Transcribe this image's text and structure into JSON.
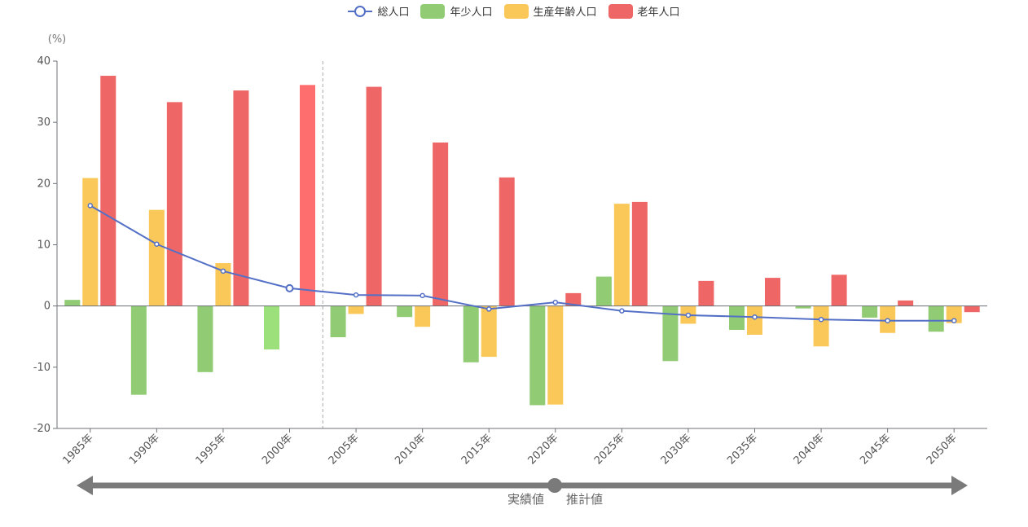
{
  "legend": {
    "total": "総人口",
    "young": "年少人口",
    "working": "生産年齢人口",
    "elderly": "老年人口"
  },
  "colors": {
    "total": "#5470c6",
    "young": "#91cc75",
    "working": "#fac858",
    "elderly": "#ee6666",
    "axis": "#6e7079",
    "arrow": "#7a7a7a"
  },
  "arrow": {
    "left_label": "実績値",
    "right_label": "推計値"
  },
  "chart_data": {
    "type": "bar",
    "unit_label": "(%)",
    "categories": [
      "1985年",
      "1990年",
      "1995年",
      "2000年",
      "2005年",
      "2010年",
      "2015年",
      "2020年",
      "2025年",
      "2030年",
      "2035年",
      "2040年",
      "2045年",
      "2050年"
    ],
    "ylim": [
      -20,
      40
    ],
    "yticks": [
      -20,
      -10,
      0,
      10,
      20,
      30,
      40
    ],
    "divider_after_category": "2000年",
    "highlighted_category": "2000年",
    "series": [
      {
        "name": "総人口",
        "kind": "line",
        "values": [
          16.4,
          10.1,
          5.7,
          2.9,
          1.8,
          1.7,
          -0.5,
          0.6,
          -0.8,
          -1.5,
          -1.8,
          -2.2,
          -2.4,
          -2.4
        ]
      },
      {
        "name": "年少人口",
        "kind": "bar",
        "values": [
          1.0,
          -14.5,
          -10.8,
          -7.1,
          -5.1,
          -1.8,
          -9.2,
          -16.2,
          4.8,
          -9.0,
          -3.9,
          -0.4,
          -1.9,
          -4.2
        ]
      },
      {
        "name": "生産年齢人口",
        "kind": "bar",
        "values": [
          20.9,
          15.7,
          7.0,
          0,
          -1.3,
          -3.4,
          -8.3,
          -16.1,
          16.7,
          -2.9,
          -4.7,
          -6.6,
          -4.4,
          -2.8
        ]
      },
      {
        "name": "老年人口",
        "kind": "bar",
        "values": [
          37.6,
          33.3,
          35.2,
          36.1,
          35.8,
          26.7,
          21.0,
          2.1,
          17.0,
          4.1,
          4.6,
          5.1,
          0.9,
          -1.0
        ]
      }
    ]
  }
}
